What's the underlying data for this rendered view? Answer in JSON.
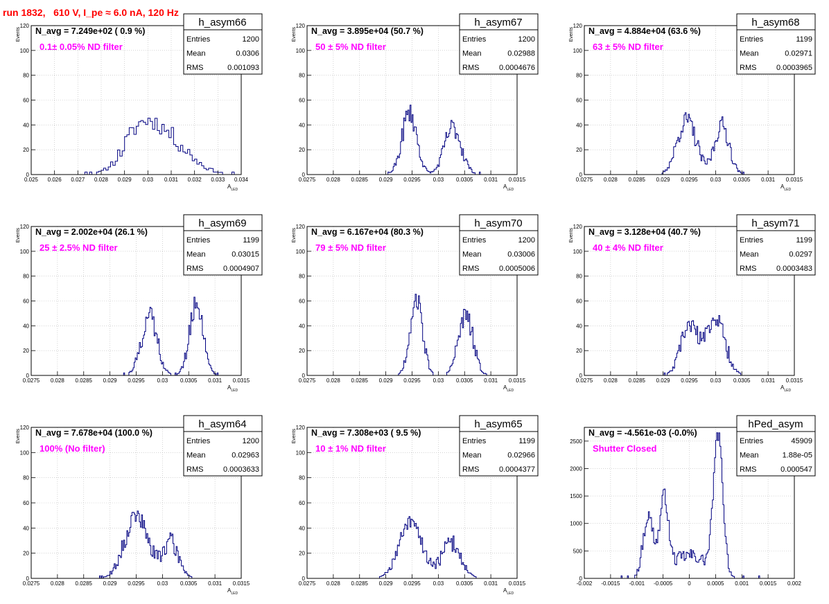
{
  "header": {
    "title": "run 1832,   610 V, I_pe ≈ 6.0 nA, 120 Hz"
  },
  "colors": {
    "title": "#ff0000",
    "annotation": "#ff00ff",
    "histogram": "#000080",
    "grid": "#b8b8b8",
    "axis": "#000000"
  },
  "stats_labels": {
    "entries": "Entries",
    "mean": "Mean",
    "rms": "RMS"
  },
  "chart_data": [
    {
      "id": "p1",
      "type": "histogram",
      "hist_name": "h_asym66",
      "navg_text": "N_avg = 7.249e+02 ( 0.9 %)",
      "filter_text": "0.1± 0.05% ND filter",
      "entries": "1200",
      "mean": "0.0306",
      "rms": "0.001093",
      "ylabel": "Events",
      "xlabel": "A",
      "xlabel_sub": "LED",
      "xlim": [
        0.025,
        0.034
      ],
      "ylim": [
        0,
        120
      ],
      "grid": true,
      "xticks": [
        0.025,
        0.026,
        0.027,
        0.028,
        0.029,
        0.03,
        0.031,
        0.032,
        0.033,
        0.034
      ],
      "xtick_labels": [
        "0.025",
        "0.026",
        "0.027",
        "0.028",
        "0.029",
        "0.03",
        "0.031",
        "0.032",
        "0.033",
        "0.034"
      ],
      "yticks": [
        0,
        20,
        40,
        60,
        80,
        100,
        120
      ],
      "ytick_labels": [
        "0",
        "20",
        "40",
        "60",
        "80",
        "100",
        "120"
      ],
      "bin_width": 0.0001,
      "peaks": [
        {
          "mu": 0.0296,
          "sigma": 0.0007,
          "amp": 24
        },
        {
          "mu": 0.0307,
          "sigma": 0.001,
          "amp": 30
        }
      ],
      "noise_seed": 11,
      "noise_amp": 7
    },
    {
      "id": "p2",
      "type": "histogram",
      "hist_name": "h_asym67",
      "navg_text": "N_avg = 3.895e+04 (50.7 %)",
      "filter_text": "50 ± 5% ND filter",
      "entries": "1200",
      "mean": "0.02988",
      "rms": "0.0004676",
      "ylabel": "Events",
      "xlabel": "A",
      "xlabel_sub": "LED",
      "xlim": [
        0.0275,
        0.0315
      ],
      "ylim": [
        0,
        120
      ],
      "grid": true,
      "xticks": [
        0.0275,
        0.028,
        0.0285,
        0.029,
        0.0295,
        0.03,
        0.0305,
        0.031,
        0.0315
      ],
      "xtick_labels": [
        "0.0275",
        "0.028",
        "0.0285",
        "0.029",
        "0.0295",
        "0.03",
        "0.0305",
        "0.031",
        "0.0315"
      ],
      "yticks": [
        0,
        20,
        40,
        60,
        80,
        100,
        120
      ],
      "ytick_labels": [
        "0",
        "20",
        "40",
        "60",
        "80",
        "100",
        "120"
      ],
      "bin_width": 2e-05,
      "peaks": [
        {
          "mu": 0.02945,
          "sigma": 0.00014,
          "amp": 50
        },
        {
          "mu": 0.03028,
          "sigma": 0.00016,
          "amp": 38
        }
      ],
      "noise_seed": 23,
      "noise_amp": 8
    },
    {
      "id": "p3",
      "type": "histogram",
      "hist_name": "h_asym68",
      "navg_text": "N_avg = 4.884e+04 (63.6 %)",
      "filter_text": "63 ± 5% ND filter",
      "entries": "1199",
      "mean": "0.02971",
      "rms": "0.0003965",
      "ylabel": "Events",
      "xlabel": "A",
      "xlabel_sub": "LED",
      "xlim": [
        0.0275,
        0.0315
      ],
      "ylim": [
        0,
        120
      ],
      "grid": true,
      "xticks": [
        0.0275,
        0.028,
        0.0285,
        0.029,
        0.0295,
        0.03,
        0.0305,
        0.031,
        0.0315
      ],
      "xtick_labels": [
        "0.0275",
        "0.028",
        "0.0285",
        "0.029",
        "0.0295",
        "0.03",
        "0.0305",
        "0.031",
        "0.0315"
      ],
      "yticks": [
        0,
        20,
        40,
        60,
        80,
        100,
        120
      ],
      "ytick_labels": [
        "0",
        "20",
        "40",
        "60",
        "80",
        "100",
        "120"
      ],
      "bin_width": 2e-05,
      "peaks": [
        {
          "mu": 0.02945,
          "sigma": 0.00018,
          "amp": 44
        },
        {
          "mu": 0.03012,
          "sigma": 0.00014,
          "amp": 40
        }
      ],
      "noise_seed": 37,
      "noise_amp": 7
    },
    {
      "id": "p4",
      "type": "histogram",
      "hist_name": "h_asym69",
      "navg_text": "N_avg = 2.002e+04 (26.1 %)",
      "filter_text": "25 ± 2.5% ND filter",
      "entries": "1199",
      "mean": "0.03015",
      "rms": "0.0004907",
      "ylabel": "Events",
      "xlabel": "A",
      "xlabel_sub": "LED",
      "xlim": [
        0.0275,
        0.0315
      ],
      "ylim": [
        0,
        120
      ],
      "grid": true,
      "xticks": [
        0.0275,
        0.028,
        0.0285,
        0.029,
        0.0295,
        0.03,
        0.0305,
        0.031,
        0.0315
      ],
      "xtick_labels": [
        "0.0275",
        "0.028",
        "0.0285",
        "0.029",
        "0.0295",
        "0.03",
        "0.0305",
        "0.031",
        "0.0315"
      ],
      "yticks": [
        0,
        20,
        40,
        60,
        80,
        100,
        120
      ],
      "ytick_labels": [
        "0",
        "20",
        "40",
        "60",
        "80",
        "100",
        "120"
      ],
      "bin_width": 2e-05,
      "peaks": [
        {
          "mu": 0.02975,
          "sigma": 0.00015,
          "amp": 48
        },
        {
          "mu": 0.03065,
          "sigma": 0.00013,
          "amp": 58
        }
      ],
      "noise_seed": 41,
      "noise_amp": 8
    },
    {
      "id": "p5",
      "type": "histogram",
      "hist_name": "h_asym70",
      "navg_text": "N_avg = 6.167e+04 (80.3 %)",
      "filter_text": "79 ± 5% ND filter",
      "entries": "1200",
      "mean": "0.03006",
      "rms": "0.0005006",
      "ylabel": "Events",
      "xlabel": "A",
      "xlabel_sub": "LED",
      "xlim": [
        0.0275,
        0.0315
      ],
      "ylim": [
        0,
        120
      ],
      "grid": true,
      "xticks": [
        0.0275,
        0.028,
        0.0285,
        0.029,
        0.0295,
        0.03,
        0.0305,
        0.031,
        0.0315
      ],
      "xtick_labels": [
        "0.0275",
        "0.028",
        "0.0285",
        "0.029",
        "0.0295",
        "0.03",
        "0.0305",
        "0.031",
        "0.0315"
      ],
      "yticks": [
        0,
        20,
        40,
        60,
        80,
        100,
        120
      ],
      "ytick_labels": [
        "0",
        "20",
        "40",
        "60",
        "80",
        "100",
        "120"
      ],
      "bin_width": 2e-05,
      "peaks": [
        {
          "mu": 0.02958,
          "sigma": 0.00012,
          "amp": 62
        },
        {
          "mu": 0.03052,
          "sigma": 0.00014,
          "amp": 48
        }
      ],
      "noise_seed": 53,
      "noise_amp": 8
    },
    {
      "id": "p6",
      "type": "histogram",
      "hist_name": "h_asym71",
      "navg_text": "N_avg = 3.128e+04 (40.7 %)",
      "filter_text": "40 ± 4% ND filter",
      "entries": "1199",
      "mean": "0.0297",
      "rms": "0.0003483",
      "ylabel": "Events",
      "xlabel": "A",
      "xlabel_sub": "LED",
      "xlim": [
        0.0275,
        0.0315
      ],
      "ylim": [
        0,
        120
      ],
      "grid": true,
      "xticks": [
        0.0275,
        0.028,
        0.0285,
        0.029,
        0.0295,
        0.03,
        0.0305,
        0.031,
        0.0315
      ],
      "xtick_labels": [
        "0.0275",
        "0.028",
        "0.0285",
        "0.029",
        "0.0295",
        "0.03",
        "0.0305",
        "0.031",
        "0.0315"
      ],
      "yticks": [
        0,
        20,
        40,
        60,
        80,
        100,
        120
      ],
      "ytick_labels": [
        "0",
        "20",
        "40",
        "60",
        "80",
        "100",
        "120"
      ],
      "bin_width": 2e-05,
      "peaks": [
        {
          "mu": 0.0295,
          "sigma": 0.00016,
          "amp": 40
        },
        {
          "mu": 0.03,
          "sigma": 0.00018,
          "amp": 46
        }
      ],
      "noise_seed": 67,
      "noise_amp": 7
    },
    {
      "id": "p7",
      "type": "histogram",
      "hist_name": "h_asym64",
      "navg_text": "N_avg = 7.678e+04 (100.0 %)",
      "filter_text": "100% (No filter)",
      "entries": "1200",
      "mean": "0.02963",
      "rms": "0.0003633",
      "ylabel": "Events",
      "xlabel": "A",
      "xlabel_sub": "LED",
      "xlim": [
        0.0275,
        0.0315
      ],
      "ylim": [
        0,
        120
      ],
      "grid": true,
      "xticks": [
        0.0275,
        0.028,
        0.0285,
        0.029,
        0.0295,
        0.03,
        0.0305,
        0.031,
        0.0315
      ],
      "xtick_labels": [
        "0.0275",
        "0.028",
        "0.0285",
        "0.029",
        "0.0295",
        "0.03",
        "0.0305",
        "0.031",
        "0.0315"
      ],
      "yticks": [
        0,
        20,
        40,
        60,
        80,
        100,
        120
      ],
      "ytick_labels": [
        "0",
        "20",
        "40",
        "60",
        "80",
        "100",
        "120"
      ],
      "bin_width": 2e-05,
      "peaks": [
        {
          "mu": 0.0295,
          "sigma": 0.00022,
          "amp": 50
        },
        {
          "mu": 0.03015,
          "sigma": 0.00016,
          "amp": 28
        }
      ],
      "noise_seed": 71,
      "noise_amp": 8
    },
    {
      "id": "p8",
      "type": "histogram",
      "hist_name": "h_asym65",
      "navg_text": "N_avg = 7.308e+03 ( 9.5 %)",
      "filter_text": "10 ± 1% ND filter",
      "entries": "1199",
      "mean": "0.02966",
      "rms": "0.0004377",
      "ylabel": "Events",
      "xlabel": "A",
      "xlabel_sub": "LED",
      "xlim": [
        0.0275,
        0.0315
      ],
      "ylim": [
        0,
        120
      ],
      "grid": true,
      "xticks": [
        0.0275,
        0.028,
        0.0285,
        0.029,
        0.0295,
        0.03,
        0.0305,
        0.031,
        0.0315
      ],
      "xtick_labels": [
        "0.0275",
        "0.028",
        "0.0285",
        "0.029",
        "0.0295",
        "0.03",
        "0.0305",
        "0.031",
        "0.0315"
      ],
      "yticks": [
        0,
        20,
        40,
        60,
        80,
        100,
        120
      ],
      "ytick_labels": [
        "0",
        "20",
        "40",
        "60",
        "80",
        "100",
        "120"
      ],
      "bin_width": 2e-05,
      "peaks": [
        {
          "mu": 0.02948,
          "sigma": 0.00022,
          "amp": 44
        },
        {
          "mu": 0.03025,
          "sigma": 0.00018,
          "amp": 28
        }
      ],
      "noise_seed": 83,
      "noise_amp": 7
    },
    {
      "id": "p9",
      "type": "histogram",
      "hist_name": "hPed_asym",
      "navg_text": "N_avg = -4.561e-03 (-0.0%)",
      "filter_text": "Shutter Closed",
      "entries": "45909",
      "mean": "1.88e-05",
      "rms": "0.000547",
      "ylabel": "",
      "xlabel": "",
      "xlabel_sub": "",
      "xlim": [
        -0.002,
        0.002
      ],
      "ylim": [
        0,
        2750
      ],
      "grid": true,
      "xticks": [
        -0.002,
        -0.0015,
        -0.001,
        -0.0005,
        0,
        0.0005,
        0.001,
        0.0015,
        0.002
      ],
      "xtick_labels": [
        "-0.002",
        "-0.0015",
        "-0.001",
        "-0.0005",
        "0",
        "0.0005",
        "0.001",
        "0.0015",
        "0.002"
      ],
      "yticks": [
        0,
        500,
        1000,
        1500,
        2000,
        2500
      ],
      "ytick_labels": [
        "0",
        "500",
        "1000",
        "1500",
        "2000",
        "2500"
      ],
      "bin_width": 2e-05,
      "peaks": [
        {
          "mu": -0.00078,
          "sigma": 0.0001,
          "amp": 1100
        },
        {
          "mu": -0.00048,
          "sigma": 8e-05,
          "amp": 1350
        },
        {
          "mu": 0.00055,
          "sigma": 9e-05,
          "amp": 2500
        },
        {
          "mu": 0.0,
          "sigma": 0.00035,
          "amp": 420
        }
      ],
      "noise_seed": 97,
      "noise_amp": 120
    }
  ]
}
